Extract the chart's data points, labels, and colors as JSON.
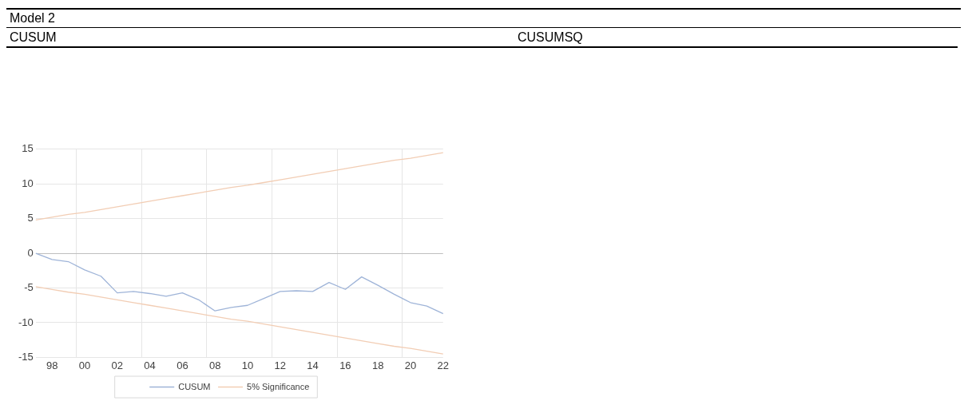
{
  "chart_data": {
    "type": "line",
    "title": "Model 2",
    "annotations": [
      "CUSUM",
      "CUSUMSQ"
    ],
    "categories": [
      null,
      "98",
      null,
      "00",
      null,
      "02",
      null,
      "04",
      null,
      "06",
      null,
      "08",
      null,
      "10",
      null,
      "12",
      null,
      "14",
      null,
      "16",
      null,
      "18",
      null,
      "20",
      null,
      "22"
    ],
    "series": [
      {
        "name": "CUSUM",
        "color": "#9fb4d8",
        "values": [
          0,
          -0.9,
          -1.2,
          -2.4,
          -3.3,
          -5.7,
          -5.5,
          -5.8,
          -6.2,
          -5.7,
          -6.7,
          -8.3,
          -7.8,
          -7.5,
          -6.5,
          -5.5,
          -5.4,
          -5.5,
          -4.2,
          -5.2,
          -3.4,
          -4.6,
          -5.9,
          -7.1,
          -7.6,
          -8.7
        ]
      },
      {
        "name": "5% Significance",
        "color": "#f2cdb4",
        "values": [
          4.8,
          5.2,
          5.6,
          5.9,
          6.3,
          6.7,
          7.1,
          7.5,
          7.9,
          8.3,
          8.7,
          9.1,
          9.5,
          9.8,
          10.2,
          10.6,
          11.0,
          11.4,
          11.8,
          12.2,
          12.6,
          13.0,
          13.4,
          13.7,
          14.1,
          14.5
        ]
      },
      {
        "color": "#f2cdb4",
        "values": [
          -4.8,
          -5.2,
          -5.6,
          -5.9,
          -6.3,
          -6.7,
          -7.1,
          -7.5,
          -7.9,
          -8.3,
          -8.7,
          -9.1,
          -9.5,
          -9.8,
          -10.2,
          -10.6,
          -11.0,
          -11.4,
          -11.8,
          -12.2,
          -12.6,
          -13.0,
          -13.4,
          -13.7,
          -14.1,
          -14.5
        ]
      }
    ],
    "ylim": [
      -15,
      15
    ],
    "yticks": [
      -15,
      -10,
      -5,
      0,
      5,
      10,
      15
    ],
    "grid": true,
    "legend": "bottom",
    "marker": "none",
    "line_style": "solid"
  }
}
